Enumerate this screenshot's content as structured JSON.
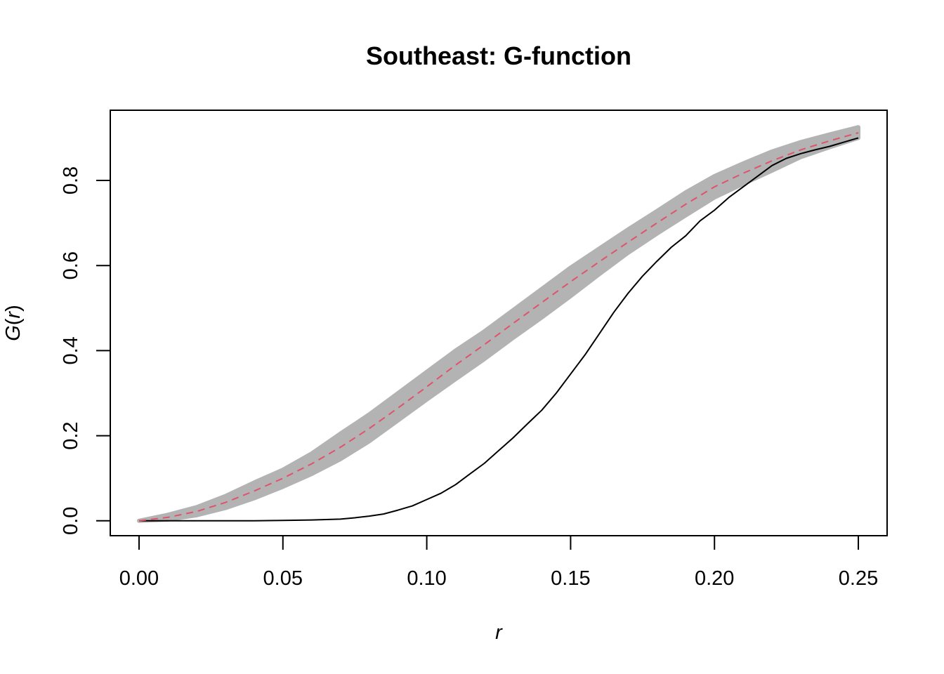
{
  "chart_data": {
    "type": "line",
    "title": "Southeast: G-function",
    "xlabel": "r",
    "ylabel": "G(r)",
    "ylabel_parts": {
      "fn": "G",
      "open": "(",
      "arg": "r",
      "close": ")"
    },
    "xlim": [
      -0.01,
      0.26
    ],
    "ylim": [
      -0.035,
      0.965
    ],
    "x_ticks": [
      0.0,
      0.05,
      0.1,
      0.15,
      0.2,
      0.25
    ],
    "x_tick_labels": [
      "0.00",
      "0.05",
      "0.10",
      "0.15",
      "0.20",
      "0.25"
    ],
    "y_ticks": [
      0.0,
      0.2,
      0.4,
      0.6,
      0.8
    ],
    "y_tick_labels": [
      "0.0",
      "0.2",
      "0.4",
      "0.6",
      "0.8"
    ],
    "grid": false,
    "legend": "none",
    "series": [
      {
        "role": "envelope",
        "color": "#b3b3b3",
        "x": [
          0.0,
          0.01,
          0.02,
          0.03,
          0.04,
          0.05,
          0.06,
          0.07,
          0.08,
          0.09,
          0.1,
          0.11,
          0.12,
          0.13,
          0.14,
          0.15,
          0.16,
          0.17,
          0.18,
          0.19,
          0.2,
          0.21,
          0.22,
          0.23,
          0.24,
          0.25
        ],
        "lower": [
          0.0,
          0.003,
          0.013,
          0.03,
          0.053,
          0.08,
          0.11,
          0.145,
          0.187,
          0.236,
          0.285,
          0.333,
          0.38,
          0.43,
          0.478,
          0.528,
          0.58,
          0.63,
          0.675,
          0.718,
          0.76,
          0.792,
          0.823,
          0.855,
          0.878,
          0.9
        ],
        "upper": [
          0.0,
          0.014,
          0.032,
          0.058,
          0.09,
          0.12,
          0.158,
          0.205,
          0.25,
          0.3,
          0.35,
          0.4,
          0.445,
          0.495,
          0.545,
          0.595,
          0.64,
          0.685,
          0.728,
          0.772,
          0.81,
          0.84,
          0.868,
          0.89,
          0.908,
          0.925
        ]
      },
      {
        "role": "theoretical",
        "style": "dashed",
        "color": "#df536b",
        "x": [
          0.0,
          0.01,
          0.02,
          0.03,
          0.04,
          0.05,
          0.06,
          0.07,
          0.08,
          0.09,
          0.1,
          0.11,
          0.12,
          0.13,
          0.14,
          0.15,
          0.16,
          0.17,
          0.18,
          0.19,
          0.2,
          0.21,
          0.22,
          0.23,
          0.24,
          0.25
        ],
        "y": [
          0.0,
          0.008,
          0.022,
          0.043,
          0.07,
          0.1,
          0.134,
          0.173,
          0.217,
          0.265,
          0.315,
          0.366,
          0.414,
          0.464,
          0.513,
          0.562,
          0.609,
          0.655,
          0.7,
          0.744,
          0.785,
          0.817,
          0.846,
          0.872,
          0.893,
          0.912
        ]
      },
      {
        "role": "observed",
        "style": "solid",
        "color": "#000000",
        "x": [
          0.0,
          0.02,
          0.04,
          0.05,
          0.06,
          0.07,
          0.075,
          0.08,
          0.085,
          0.09,
          0.095,
          0.1,
          0.105,
          0.11,
          0.115,
          0.12,
          0.125,
          0.13,
          0.135,
          0.14,
          0.145,
          0.15,
          0.155,
          0.16,
          0.165,
          0.17,
          0.175,
          0.18,
          0.185,
          0.19,
          0.195,
          0.2,
          0.205,
          0.21,
          0.215,
          0.22,
          0.225,
          0.23,
          0.235,
          0.24,
          0.245,
          0.25
        ],
        "y": [
          0.0,
          0.0,
          0.0,
          0.001,
          0.002,
          0.004,
          0.007,
          0.011,
          0.016,
          0.025,
          0.035,
          0.05,
          0.065,
          0.085,
          0.11,
          0.135,
          0.165,
          0.195,
          0.228,
          0.26,
          0.3,
          0.345,
          0.39,
          0.44,
          0.49,
          0.535,
          0.575,
          0.61,
          0.643,
          0.67,
          0.705,
          0.73,
          0.76,
          0.785,
          0.81,
          0.835,
          0.852,
          0.863,
          0.872,
          0.88,
          0.89,
          0.9
        ]
      }
    ]
  }
}
